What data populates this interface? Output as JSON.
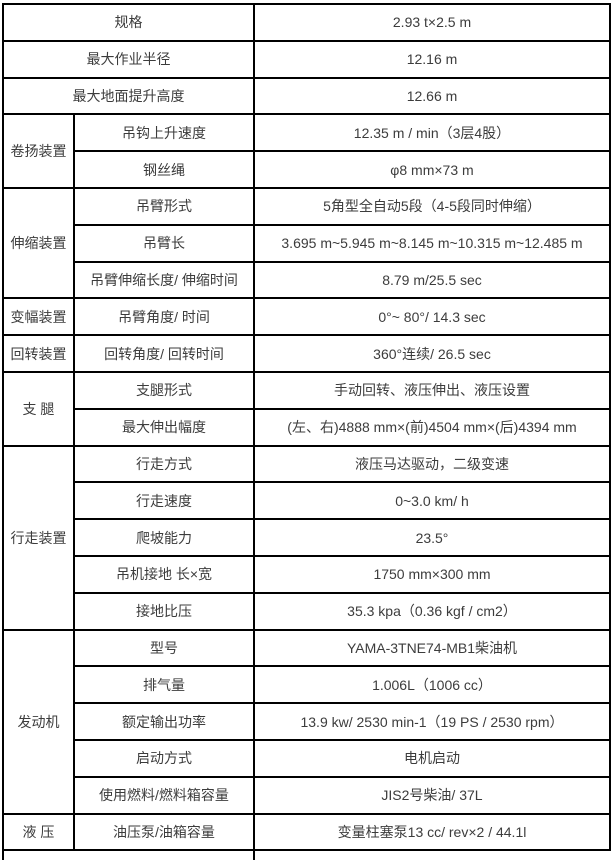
{
  "theme": {
    "border_color": "#000000",
    "text_color": "#3c3c3c",
    "background_color": "#ffffff"
  },
  "table": {
    "columns": {
      "category_width": 71,
      "label_width": 180,
      "value_width": 356
    },
    "rows": [
      {
        "category": null,
        "rowspan": 0,
        "merged": true,
        "label": "规格",
        "value": "2.93 t×2.5 m"
      },
      {
        "category": null,
        "rowspan": 0,
        "merged": true,
        "label": "最大作业半径",
        "value": "12.16 m"
      },
      {
        "category": null,
        "rowspan": 0,
        "merged": true,
        "label": "最大地面提升高度",
        "value": "12.66 m"
      },
      {
        "category": "卷扬装置",
        "rowspan": 2,
        "merged": false,
        "label": "吊钩上升速度",
        "value": "12.35 m / min（3层4股）"
      },
      {
        "category": null,
        "rowspan": 0,
        "merged": false,
        "label": "钢丝绳",
        "value": "φ8 mm×73 m"
      },
      {
        "category": "伸缩装置",
        "rowspan": 3,
        "merged": false,
        "label": "吊臂形式",
        "value": "5角型全自动5段（4-5段同时伸缩）"
      },
      {
        "category": null,
        "rowspan": 0,
        "merged": false,
        "label": "吊臂长",
        "value": "3.695 m~5.945 m~8.145 m~10.315 m~12.485 m"
      },
      {
        "category": null,
        "rowspan": 0,
        "merged": false,
        "label": "吊臂伸缩长度/ 伸缩时间",
        "value": "8.79 m/25.5 sec"
      },
      {
        "category": "变幅装置",
        "rowspan": 1,
        "merged": false,
        "label": "吊臂角度/ 时间",
        "value": "0°~ 80°/ 14.3 sec"
      },
      {
        "category": "回转装置",
        "rowspan": 1,
        "merged": false,
        "label": "回转角度/ 回转时间",
        "value": "360°连续/ 26.5 sec"
      },
      {
        "category": "支 腿",
        "rowspan": 2,
        "merged": false,
        "label": "支腿形式",
        "value": "手动回转、液压伸出、液压设置"
      },
      {
        "category": null,
        "rowspan": 0,
        "merged": false,
        "label": "最大伸出幅度",
        "value": "(左、右)4888 mm×(前)4504 mm×(后)4394 mm"
      },
      {
        "category": "行走装置",
        "rowspan": 5,
        "merged": false,
        "label": "行走方式",
        "value": "液压马达驱动，二级变速"
      },
      {
        "category": null,
        "rowspan": 0,
        "merged": false,
        "label": "行走速度",
        "value": "0~3.0 km/ h"
      },
      {
        "category": null,
        "rowspan": 0,
        "merged": false,
        "label": "爬坡能力",
        "value": "23.5°"
      },
      {
        "category": null,
        "rowspan": 0,
        "merged": false,
        "label": "吊机接地 长×宽",
        "value": "1750 mm×300 mm"
      },
      {
        "category": null,
        "rowspan": 0,
        "merged": false,
        "label": "接地比压",
        "value": "35.3 kpa（0.36 kgf / cm2）"
      },
      {
        "category": "发动机",
        "rowspan": 5,
        "merged": false,
        "label": "型号",
        "value": "YAMA-3TNE74-MB1柴油机"
      },
      {
        "category": null,
        "rowspan": 0,
        "merged": false,
        "label": "排气量",
        "value": "1.006L（1006 cc）"
      },
      {
        "category": null,
        "rowspan": 0,
        "merged": false,
        "label": "额定输出功率",
        "value": "13.9 kw/ 2530 min-1（19 PS / 2530 rpm）"
      },
      {
        "category": null,
        "rowspan": 0,
        "merged": false,
        "label": "启动方式",
        "value": "电机启动"
      },
      {
        "category": null,
        "rowspan": 0,
        "merged": false,
        "label": "使用燃料/燃料箱容量",
        "value": "JIS2号柴油/ 37L"
      },
      {
        "category": "液 压",
        "rowspan": 1,
        "merged": false,
        "label": "油压泵/油箱容量",
        "value": "变量柱塞泵13 cc/ rev×2 / 44.1l"
      }
    ]
  }
}
